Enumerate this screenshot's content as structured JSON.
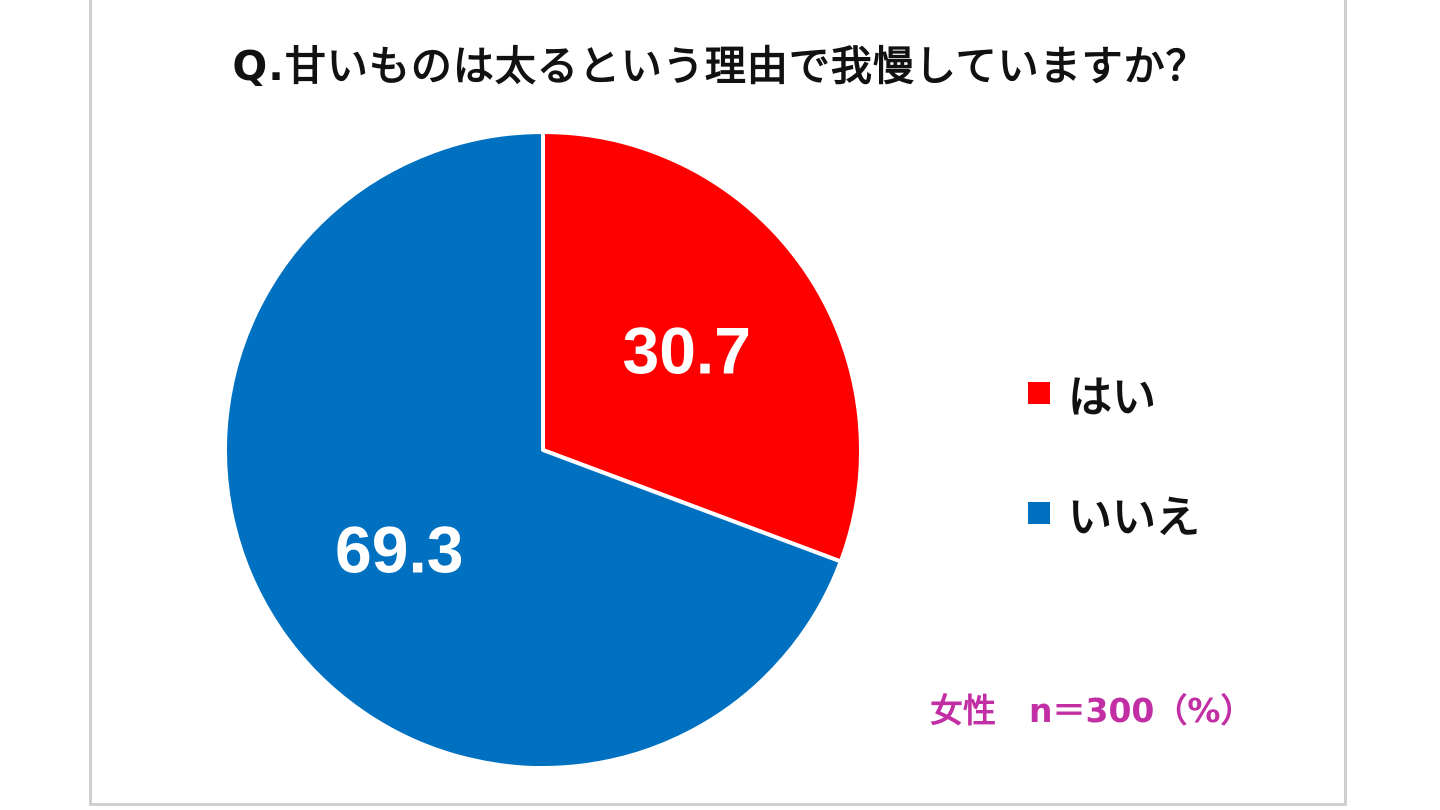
{
  "chart_data": {
    "type": "pie",
    "title": "Q.甘いものは太るという理由で我慢していますか？",
    "categories": [
      "はい",
      "いいえ"
    ],
    "values": [
      30.7,
      69.3
    ],
    "value_labels": [
      "30.7",
      "69.3"
    ],
    "colors": [
      "#ff0000",
      "#0070c0"
    ],
    "legend_position": "right",
    "note": "女性　n＝300（%）"
  }
}
